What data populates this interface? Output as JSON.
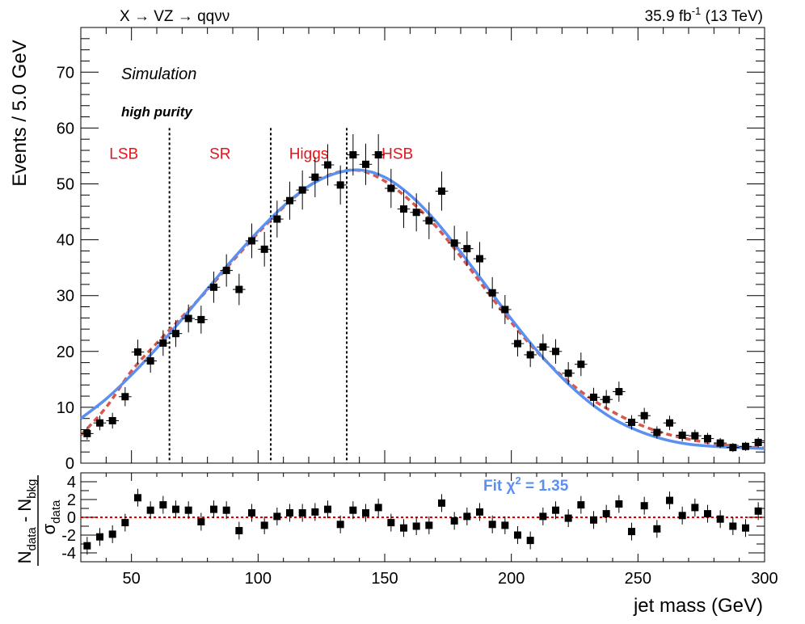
{
  "header": {
    "process": "X → VZ → qqνν",
    "lumi_value": "35.9 fb",
    "lumi_exp": "-1",
    "energy": " (13 TeV)"
  },
  "labels": {
    "simulation": "Simulation",
    "category": "high purity",
    "fit_text": "Fit χ",
    "fit_exp": "2",
    "fit_value": " = 1.35"
  },
  "colors": {
    "fit_line": "#5b8ff0",
    "alt_fit": "#d9574a",
    "region_text": "#e8131a",
    "zero_line": "#cc0000",
    "data": "#000000"
  },
  "chart_data": [
    {
      "type": "scatter",
      "name": "main",
      "ylabel": "Events / 5.0 GeV",
      "xlim": [
        30,
        300
      ],
      "ylim": [
        0,
        78
      ],
      "x_ticks": [
        50,
        100,
        150,
        200,
        250,
        300
      ],
      "y_ticks": [
        0,
        10,
        20,
        30,
        40,
        50,
        60,
        70
      ],
      "regions": [
        {
          "label": "LSB",
          "center": 47
        },
        {
          "label": "SR",
          "center": 85
        },
        {
          "label": "Higgs",
          "center": 120
        },
        {
          "label": "HSB",
          "center": 155
        }
      ],
      "boundaries": [
        65,
        105,
        135
      ],
      "x": [
        32.5,
        37.5,
        42.5,
        47.5,
        52.5,
        57.5,
        62.5,
        67.5,
        72.5,
        77.5,
        82.5,
        87.5,
        92.5,
        97.5,
        102.5,
        107.5,
        112.5,
        117.5,
        122.5,
        127.5,
        132.5,
        137.5,
        142.5,
        147.5,
        152.5,
        157.5,
        162.5,
        167.5,
        172.5,
        177.5,
        182.5,
        187.5,
        192.5,
        197.5,
        202.5,
        207.5,
        212.5,
        217.5,
        222.5,
        227.5,
        232.5,
        237.5,
        242.5,
        247.5,
        252.5,
        257.5,
        262.5,
        267.5,
        272.5,
        277.5,
        282.5,
        287.5,
        292.5,
        297.5
      ],
      "values": [
        5.3,
        7.2,
        7.6,
        11.9,
        19.9,
        18.3,
        21.5,
        23.2,
        25.9,
        25.7,
        31.5,
        34.5,
        31.1,
        39.8,
        38.3,
        43.7,
        47.0,
        48.9,
        51.2,
        53.4,
        49.8,
        55.2,
        53.5,
        55.2,
        49.2,
        45.5,
        44.9,
        43.4,
        48.7,
        39.4,
        38.4,
        36.6,
        30.5,
        27.5,
        21.4,
        19.4,
        20.8,
        20.0,
        16.1,
        17.7,
        11.8,
        11.4,
        12.8,
        7.3,
        8.5,
        5.5,
        7.2,
        5.0,
        4.9,
        4.4,
        3.6,
        2.8,
        3.0,
        3.7
      ],
      "errors": [
        1.1,
        1.3,
        1.4,
        1.7,
        2.2,
        2.1,
        2.3,
        2.4,
        2.5,
        2.5,
        2.8,
        2.9,
        2.8,
        3.1,
        3.1,
        3.3,
        3.4,
        3.5,
        3.6,
        3.7,
        3.5,
        3.7,
        3.7,
        3.7,
        3.5,
        3.4,
        3.4,
        3.3,
        3.5,
        3.1,
        3.1,
        3.0,
        2.8,
        2.6,
        2.3,
        2.2,
        2.3,
        2.2,
        2.0,
        2.1,
        1.7,
        1.7,
        1.8,
        1.3,
        1.4,
        1.1,
        1.3,
        1.1,
        1.1,
        1.0,
        0.9,
        0.8,
        0.8,
        0.9
      ],
      "fit": {
        "name": "fit",
        "x": [
          30,
          40,
          50,
          60,
          70,
          80,
          90,
          100,
          110,
          120,
          130,
          140,
          150,
          160,
          170,
          180,
          190,
          200,
          210,
          220,
          230,
          240,
          250,
          260,
          270,
          280,
          290,
          300
        ],
        "values": [
          8.0,
          11.5,
          15.8,
          20.6,
          25.8,
          31.2,
          36.5,
          41.5,
          46.0,
          49.6,
          51.8,
          52.5,
          51.2,
          48.0,
          43.4,
          37.8,
          31.8,
          25.8,
          20.2,
          15.3,
          11.2,
          8.0,
          5.8,
          4.3,
          3.4,
          3.0,
          2.8,
          2.6
        ]
      },
      "alt_fit": {
        "name": "alt",
        "x": [
          30,
          40,
          50,
          60,
          70,
          80,
          90,
          100,
          110,
          120,
          130,
          140,
          150,
          160,
          170,
          180,
          190,
          200,
          210,
          220,
          230,
          240,
          250,
          260,
          270,
          280,
          290,
          300
        ],
        "values": [
          5.0,
          10.0,
          16.5,
          21.5,
          26.2,
          31.0,
          36.2,
          41.2,
          45.8,
          49.6,
          51.9,
          52.4,
          50.5,
          47.0,
          42.5,
          37.0,
          31.0,
          25.2,
          20.0,
          15.6,
          12.0,
          9.2,
          7.0,
          5.4,
          4.3,
          3.5,
          3.0,
          2.7
        ]
      }
    },
    {
      "type": "scatter",
      "name": "pull",
      "ylabel_num": "N",
      "ylabel_num_sub1": "data",
      "ylabel_minus": " - N",
      "ylabel_num_sub2": "bkg",
      "ylabel_den": "σ",
      "ylabel_den_sub": "data",
      "xlabel": "jet mass (GeV)",
      "xlim": [
        30,
        300
      ],
      "ylim": [
        -5,
        5
      ],
      "y_ticks": [
        -4,
        -2,
        0,
        2,
        4
      ],
      "x": [
        32.5,
        37.5,
        42.5,
        47.5,
        52.5,
        57.5,
        62.5,
        67.5,
        72.5,
        77.5,
        82.5,
        87.5,
        92.5,
        97.5,
        102.5,
        107.5,
        112.5,
        117.5,
        122.5,
        127.5,
        132.5,
        137.5,
        142.5,
        147.5,
        152.5,
        157.5,
        162.5,
        167.5,
        172.5,
        177.5,
        182.5,
        187.5,
        192.5,
        197.5,
        202.5,
        207.5,
        212.5,
        217.5,
        222.5,
        227.5,
        232.5,
        237.5,
        242.5,
        247.5,
        252.5,
        257.5,
        262.5,
        267.5,
        272.5,
        277.5,
        282.5,
        287.5,
        292.5,
        297.5
      ],
      "values": [
        -3.2,
        -2.2,
        -1.9,
        -0.6,
        2.2,
        0.8,
        1.4,
        0.9,
        0.8,
        -0.5,
        0.9,
        0.8,
        -1.5,
        0.5,
        -0.9,
        0.1,
        0.5,
        0.5,
        0.6,
        0.9,
        -0.8,
        0.8,
        0.5,
        1.1,
        -0.6,
        -1.2,
        -1.0,
        -0.9,
        1.6,
        -0.4,
        0.1,
        0.6,
        -0.8,
        -0.9,
        -2.0,
        -2.6,
        0.1,
        0.8,
        -0.1,
        1.4,
        -0.3,
        0.4,
        1.5,
        -1.6,
        1.3,
        -1.3,
        1.9,
        0.2,
        1.1,
        0.4,
        -0.2,
        -1.0,
        -1.2,
        0.7
      ]
    }
  ]
}
